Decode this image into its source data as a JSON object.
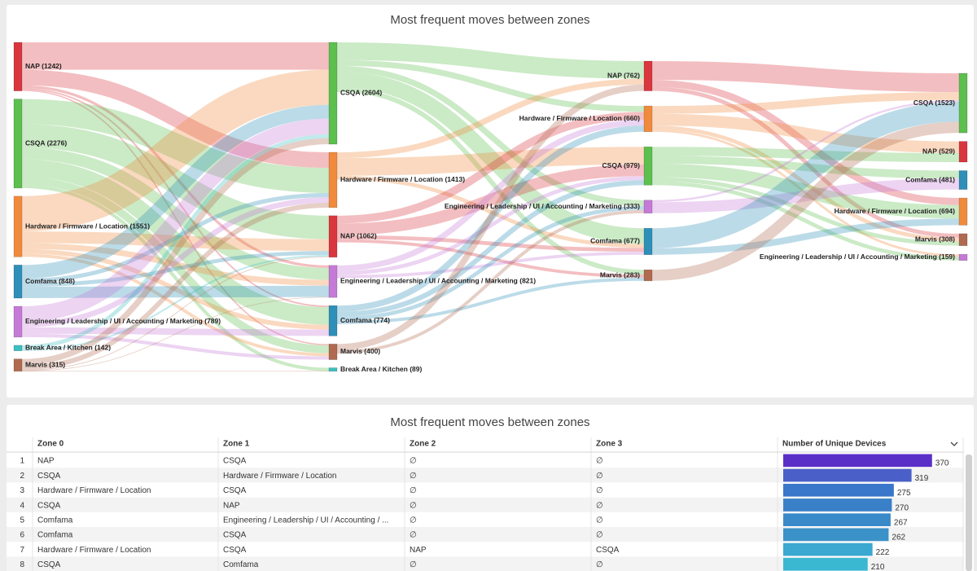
{
  "chart_data": {
    "type": "sankey",
    "title": "Most frequent moves between zones",
    "columns": [
      {
        "nodes": [
          {
            "label": "NAP (1242)",
            "value": 1242,
            "color": "#d9363e"
          },
          {
            "label": "CSQA (2276)",
            "value": 2276,
            "color": "#5cbf4e"
          },
          {
            "label": "Hardware / Firmware / Location (1551)",
            "value": 1551,
            "color": "#f08a3c"
          },
          {
            "label": "Comfama (848)",
            "value": 848,
            "color": "#2e8fb8"
          },
          {
            "label": "Engineering / Leadership / UI / Accounting / Marketing (789)",
            "value": 789,
            "color": "#c57ad6"
          },
          {
            "label": "Break Area / Kitchen (142)",
            "value": 142,
            "color": "#3cbfc0"
          },
          {
            "label": "Marvis (315)",
            "value": 315,
            "color": "#b06a4f"
          }
        ]
      },
      {
        "nodes": [
          {
            "label": "CSQA (2604)",
            "value": 2604,
            "color": "#5cbf4e"
          },
          {
            "label": "Hardware / Firmware / Location (1413)",
            "value": 1413,
            "color": "#f08a3c"
          },
          {
            "label": "NAP (1062)",
            "value": 1062,
            "color": "#d9363e"
          },
          {
            "label": "Engineering / Leadership / UI / Accounting / Marketing (821)",
            "value": 821,
            "color": "#c57ad6"
          },
          {
            "label": "Comfama (774)",
            "value": 774,
            "color": "#2e8fb8"
          },
          {
            "label": "Marvis (400)",
            "value": 400,
            "color": "#b06a4f"
          },
          {
            "label": "Break Area / Kitchen (89)",
            "value": 89,
            "color": "#3cbfc0"
          }
        ]
      },
      {
        "nodes": [
          {
            "label": "NAP (762)",
            "value": 762,
            "color": "#d9363e"
          },
          {
            "label": "Hardware / Firmware / Location (660)",
            "value": 660,
            "color": "#f08a3c"
          },
          {
            "label": "CSQA (979)",
            "value": 979,
            "color": "#5cbf4e"
          },
          {
            "label": "Engineering / Leadership / UI / Accounting / Marketing (333)",
            "value": 333,
            "color": "#c57ad6"
          },
          {
            "label": "Comfama (677)",
            "value": 677,
            "color": "#2e8fb8"
          },
          {
            "label": "Marvis (283)",
            "value": 283,
            "color": "#b06a4f"
          }
        ]
      },
      {
        "nodes": [
          {
            "label": "CSQA (1523)",
            "value": 1523,
            "color": "#5cbf4e"
          },
          {
            "label": "NAP (529)",
            "value": 529,
            "color": "#d9363e"
          },
          {
            "label": "Comfama (481)",
            "value": 481,
            "color": "#2e8fb8"
          },
          {
            "label": "Hardware / Firmware / Location (694)",
            "value": 694,
            "color": "#f08a3c"
          },
          {
            "label": "Marvis (308)",
            "value": 308,
            "color": "#b06a4f"
          },
          {
            "label": "Engineering / Leadership / UI / Accounting / Marketing (159)",
            "value": 159,
            "color": "#c57ad6"
          }
        ]
      }
    ],
    "links": [
      [
        {
          "source": 0,
          "target": 0,
          "value": 700
        },
        {
          "source": 0,
          "target": 1,
          "value": 400
        },
        {
          "source": 0,
          "target": 3,
          "value": 68
        },
        {
          "source": 0,
          "target": 4,
          "value": 40
        },
        {
          "source": 0,
          "target": 5,
          "value": 34
        },
        {
          "source": 1,
          "target": 1,
          "value": 640
        },
        {
          "source": 1,
          "target": 2,
          "value": 600
        },
        {
          "source": 1,
          "target": 3,
          "value": 300
        },
        {
          "source": 1,
          "target": 4,
          "value": 450
        },
        {
          "source": 1,
          "target": 5,
          "value": 200
        },
        {
          "source": 1,
          "target": 6,
          "value": 86
        },
        {
          "source": 2,
          "target": 0,
          "value": 900
        },
        {
          "source": 2,
          "target": 2,
          "value": 300
        },
        {
          "source": 2,
          "target": 3,
          "value": 150
        },
        {
          "source": 2,
          "target": 4,
          "value": 120
        },
        {
          "source": 2,
          "target": 5,
          "value": 81
        },
        {
          "source": 3,
          "target": 0,
          "value": 350
        },
        {
          "source": 3,
          "target": 1,
          "value": 108
        },
        {
          "source": 3,
          "target": 2,
          "value": 100
        },
        {
          "source": 3,
          "target": 3,
          "value": 290
        },
        {
          "source": 4,
          "target": 0,
          "value": 400
        },
        {
          "source": 4,
          "target": 1,
          "value": 140
        },
        {
          "source": 4,
          "target": 4,
          "value": 164
        },
        {
          "source": 4,
          "target": 5,
          "value": 85
        },
        {
          "source": 5,
          "target": 0,
          "value": 100
        },
        {
          "source": 5,
          "target": 2,
          "value": 42
        },
        {
          "source": 6,
          "target": 0,
          "value": 154
        },
        {
          "source": 6,
          "target": 1,
          "value": 125
        },
        {
          "source": 6,
          "target": 2,
          "value": 20
        },
        {
          "source": 6,
          "target": 3,
          "value": 13
        },
        {
          "source": 6,
          "target": 6,
          "value": 3
        }
      ],
      [
        {
          "source": 0,
          "target": 0,
          "value": 450
        },
        {
          "source": 0,
          "target": 1,
          "value": 150
        },
        {
          "source": 0,
          "target": 3,
          "value": 150
        },
        {
          "source": 0,
          "target": 4,
          "value": 400
        },
        {
          "source": 0,
          "target": 5,
          "value": 120
        },
        {
          "source": 1,
          "target": 0,
          "value": 150
        },
        {
          "source": 1,
          "target": 2,
          "value": 450
        },
        {
          "source": 1,
          "target": 4,
          "value": 100
        },
        {
          "source": 2,
          "target": 1,
          "value": 200
        },
        {
          "source": 2,
          "target": 2,
          "value": 300
        },
        {
          "source": 2,
          "target": 4,
          "value": 100
        },
        {
          "source": 2,
          "target": 5,
          "value": 80
        },
        {
          "source": 3,
          "target": 1,
          "value": 150
        },
        {
          "source": 3,
          "target": 2,
          "value": 100
        },
        {
          "source": 3,
          "target": 4,
          "value": 77
        },
        {
          "source": 4,
          "target": 1,
          "value": 160
        },
        {
          "source": 4,
          "target": 2,
          "value": 129
        },
        {
          "source": 4,
          "target": 3,
          "value": 100
        },
        {
          "source": 4,
          "target": 5,
          "value": 83
        },
        {
          "source": 5,
          "target": 0,
          "value": 162
        },
        {
          "source": 5,
          "target": 3,
          "value": 83
        }
      ],
      [
        {
          "source": 0,
          "target": 0,
          "value": 480
        },
        {
          "source": 0,
          "target": 3,
          "value": 180
        },
        {
          "source": 0,
          "target": 4,
          "value": 102
        },
        {
          "source": 1,
          "target": 0,
          "value": 200
        },
        {
          "source": 1,
          "target": 1,
          "value": 300
        },
        {
          "source": 1,
          "target": 4,
          "value": 100
        },
        {
          "source": 1,
          "target": 5,
          "value": 60
        },
        {
          "source": 2,
          "target": 1,
          "value": 229
        },
        {
          "source": 2,
          "target": 2,
          "value": 200
        },
        {
          "source": 2,
          "target": 3,
          "value": 345
        },
        {
          "source": 2,
          "target": 4,
          "value": 106
        },
        {
          "source": 2,
          "target": 5,
          "value": 99
        },
        {
          "source": 3,
          "target": 0,
          "value": 52
        },
        {
          "source": 3,
          "target": 2,
          "value": 281
        },
        {
          "source": 4,
          "target": 0,
          "value": 508
        },
        {
          "source": 4,
          "target": 3,
          "value": 169
        },
        {
          "source": 5,
          "target": 0,
          "value": 283
        }
      ]
    ]
  },
  "table": {
    "title": "Most frequent moves between zones",
    "headers": [
      "Zone 0",
      "Zone 1",
      "Zone 2",
      "Zone 3",
      "Number of Unique Devices"
    ],
    "rows": [
      {
        "number": 1,
        "cells": [
          "NAP",
          "CSQA",
          "∅",
          "∅"
        ],
        "devices": 370,
        "color": "#5a2fc8"
      },
      {
        "number": 2,
        "cells": [
          "CSQA",
          "Hardware / Firmware / Location",
          "∅",
          "∅"
        ],
        "devices": 319,
        "color": "#4a5fc8"
      },
      {
        "number": 3,
        "cells": [
          "Hardware / Firmware / Location",
          "CSQA",
          "∅",
          "∅"
        ],
        "devices": 275,
        "color": "#3a76c9"
      },
      {
        "number": 4,
        "cells": [
          "CSQA",
          "NAP",
          "∅",
          "∅"
        ],
        "devices": 270,
        "color": "#3a80c8"
      },
      {
        "number": 5,
        "cells": [
          "Comfama",
          "Engineering / Leadership / UI / Accounting / ...",
          "∅",
          "∅"
        ],
        "devices": 267,
        "color": "#3a89c9"
      },
      {
        "number": 6,
        "cells": [
          "Comfama",
          "CSQA",
          "∅",
          "∅"
        ],
        "devices": 262,
        "color": "#3a92c8"
      },
      {
        "number": 7,
        "cells": [
          "Hardware / Firmware / Location",
          "CSQA",
          "NAP",
          "CSQA"
        ],
        "devices": 222,
        "color": "#3aa8d0"
      },
      {
        "number": 8,
        "cells": [
          "CSQA",
          "Comfama",
          "∅",
          "∅"
        ],
        "devices": 210,
        "color": "#3ab8d2"
      }
    ]
  }
}
